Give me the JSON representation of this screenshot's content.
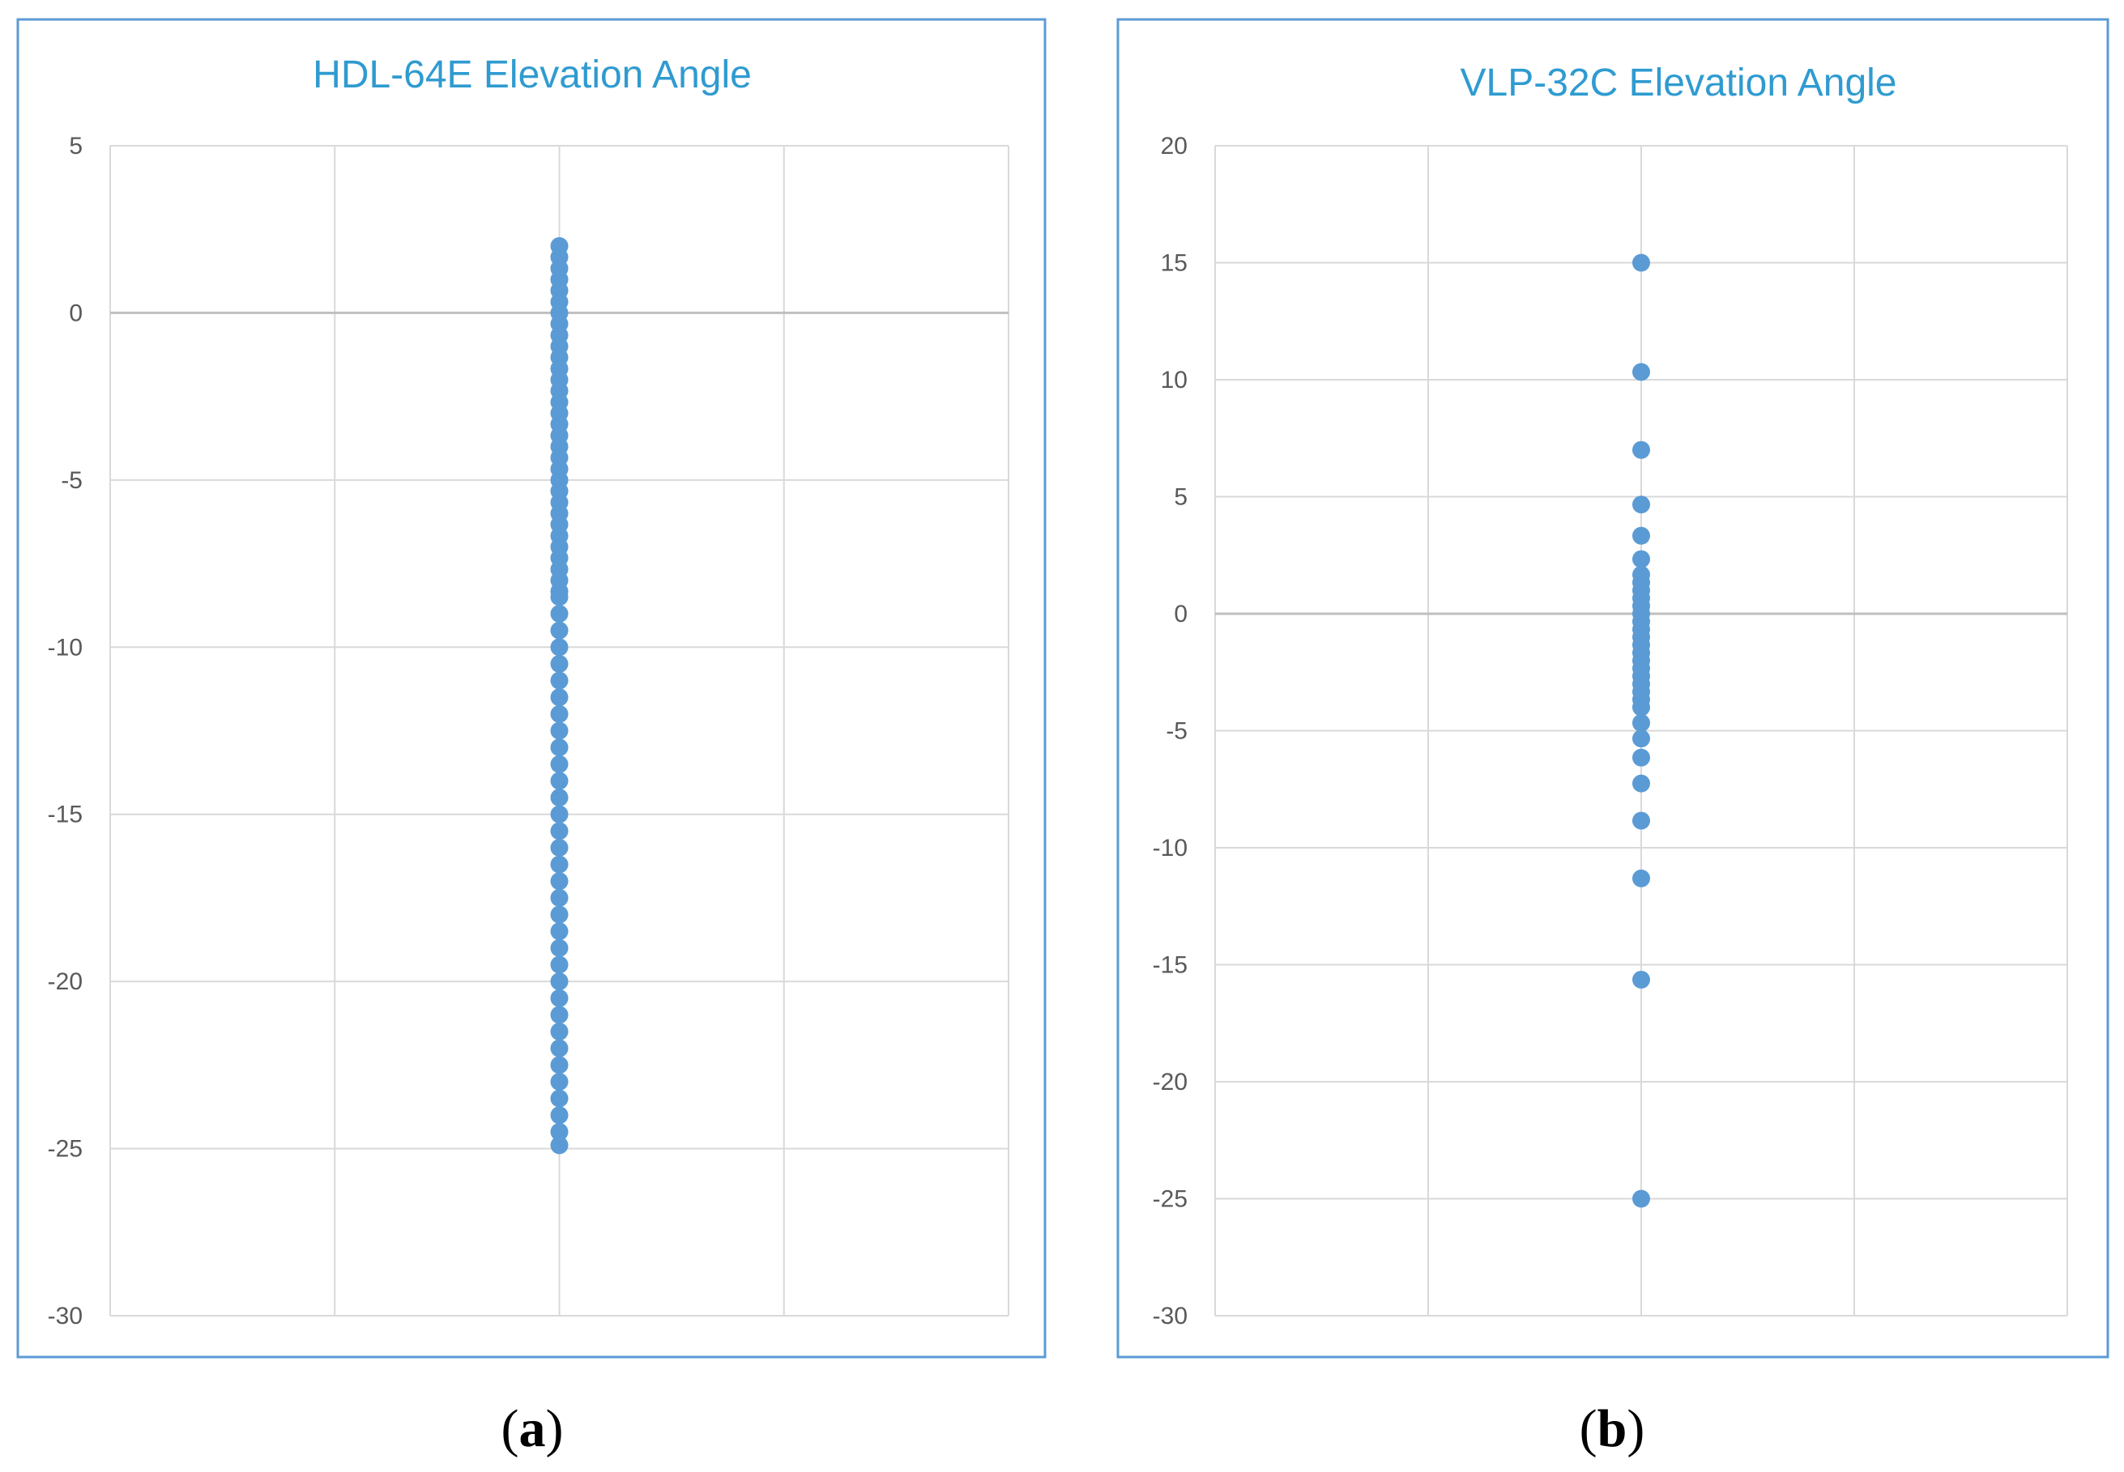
{
  "chart_data": [
    {
      "type": "scatter",
      "title": "HDL-64E Elevation Angle",
      "caption": {
        "open": "(",
        "letter": "a",
        "close": ")"
      },
      "xlabel": "",
      "ylabel": "",
      "xlim": [
        -2,
        2
      ],
      "ylim": [
        -30,
        5
      ],
      "yticks": [
        5,
        0,
        -5,
        -10,
        -15,
        -20,
        -25,
        -30
      ],
      "ytick_labels": [
        "5",
        "0",
        "-5",
        "-10",
        "-15",
        "-20",
        "-25",
        "-30"
      ],
      "grid": true,
      "marker_color": "#5b9bd5",
      "series": [
        {
          "name": "HDL-64E",
          "x": 0,
          "y": [
            2.0,
            1.67,
            1.33,
            1.0,
            0.67,
            0.33,
            0.0,
            -0.33,
            -0.67,
            -1.0,
            -1.33,
            -1.67,
            -2.0,
            -2.33,
            -2.67,
            -3.0,
            -3.33,
            -3.67,
            -4.0,
            -4.33,
            -4.67,
            -5.0,
            -5.33,
            -5.67,
            -6.0,
            -6.33,
            -6.67,
            -7.0,
            -7.33,
            -7.67,
            -8.0,
            -8.33,
            -8.5,
            -9.0,
            -9.5,
            -10.0,
            -10.5,
            -11.0,
            -11.5,
            -12.0,
            -12.5,
            -13.0,
            -13.5,
            -14.0,
            -14.5,
            -15.0,
            -15.5,
            -16.0,
            -16.5,
            -17.0,
            -17.5,
            -18.0,
            -18.5,
            -19.0,
            -19.5,
            -20.0,
            -20.5,
            -21.0,
            -21.5,
            -22.0,
            -22.5,
            -23.0,
            -23.5,
            -24.0,
            -24.5,
            -24.9
          ]
        }
      ]
    },
    {
      "type": "scatter",
      "title": "VLP-32C Elevation Angle",
      "caption": {
        "open": "(",
        "letter": "b",
        "close": ")"
      },
      "xlabel": "",
      "ylabel": "",
      "xlim": [
        -2,
        2
      ],
      "ylim": [
        -30,
        20
      ],
      "yticks": [
        20,
        15,
        10,
        5,
        0,
        -5,
        -10,
        -15,
        -20,
        -25,
        -30
      ],
      "ytick_labels": [
        "20",
        "15",
        "10",
        "5",
        "0",
        "-5",
        "-10",
        "-15",
        "-20",
        "-25",
        "-30"
      ],
      "grid": true,
      "marker_color": "#5b9bd5",
      "series": [
        {
          "name": "VLP-32C",
          "x": 0,
          "y": [
            15.0,
            10.333,
            7.0,
            4.667,
            3.333,
            2.333,
            1.667,
            1.333,
            1.0,
            0.667,
            0.333,
            0.0,
            -0.333,
            -0.667,
            -1.0,
            -1.333,
            -1.667,
            -2.0,
            -2.333,
            -2.667,
            -3.0,
            -3.333,
            -3.667,
            -4.0,
            -4.667,
            -5.333,
            -6.148,
            -7.254,
            -8.843,
            -11.31,
            -15.639,
            -25.0
          ]
        }
      ]
    }
  ]
}
